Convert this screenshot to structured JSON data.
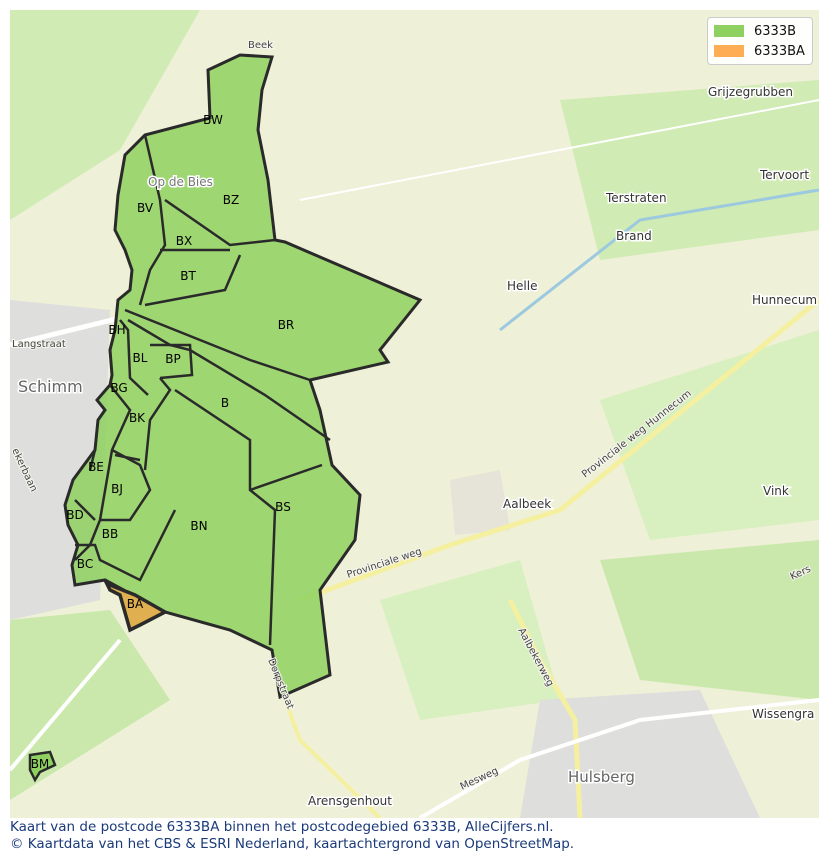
{
  "legend": [
    {
      "label": "6333B",
      "color": "#8fd160"
    },
    {
      "label": "6333BA",
      "color": "#ffad55"
    }
  ],
  "postcode_labels": [
    "BW",
    "BV",
    "BZ",
    "BX",
    "BT",
    "BR",
    "BH",
    "BL",
    "BP",
    "BG",
    "B",
    "BK",
    "BE",
    "BJ",
    "BD",
    "BB",
    "BN",
    "BS",
    "BC",
    "BA",
    "BM"
  ],
  "places": [
    "Grijzegrubben",
    "Terstraten",
    "Tervoort",
    "Brand",
    "Helle",
    "Hunnecum",
    "Schimm",
    "Langstraat",
    "Aalbeek",
    "Vink",
    "Hulsberg",
    "Arensgenhout",
    "Wissengra",
    "Op de Bies",
    "Beek"
  ],
  "roads": [
    "Provinciale weg",
    "Provinciale weg Hunnecum",
    "Aalbekerweg",
    "Mesweg",
    "Dorpstraat",
    "ekerbaan",
    "Kers"
  ],
  "colors": {
    "region": "#8fd160",
    "selected": "#e0b050",
    "border": "#2a2a2a"
  },
  "footer": {
    "line1": "Kaart van de postcode 6333BA binnen het postcodegebied 6333B, AlleCijfers.nl.",
    "line2": "© Kaartdata van het CBS & ESRI Nederland, kaartachtergrond van OpenStreetMap."
  }
}
